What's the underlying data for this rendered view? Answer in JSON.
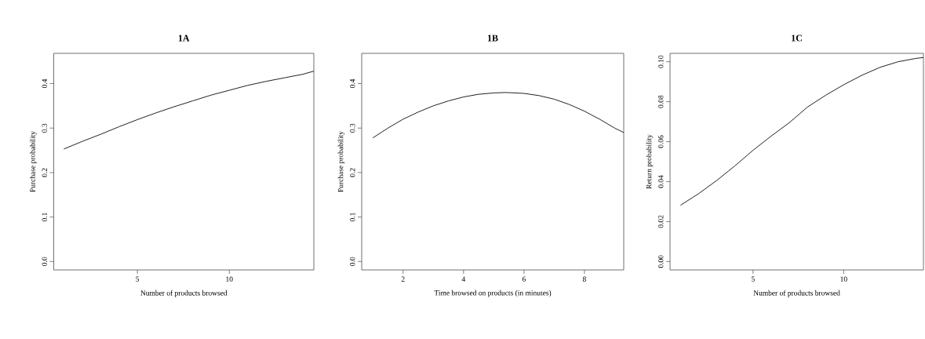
{
  "chart_data": [
    {
      "type": "line",
      "title": "1A",
      "xlabel": "Number of products browsed",
      "ylabel": "Purchase probability",
      "color": "#222222",
      "grid": false,
      "marker": "none",
      "line_style": "solid",
      "x": [
        1,
        2,
        3,
        4,
        5,
        6,
        7,
        8,
        9,
        10,
        11,
        12,
        13,
        14,
        14.6
      ],
      "values": [
        0.253,
        0.27,
        0.286,
        0.303,
        0.319,
        0.334,
        0.348,
        0.361,
        0.374,
        0.385,
        0.396,
        0.405,
        0.413,
        0.421,
        0.428
      ],
      "xlim": [
        0.45,
        14.6
      ],
      "ylim": [
        -0.019,
        0.468
      ],
      "xticks": [
        5,
        10
      ],
      "yticks": [
        {
          "value": 0,
          "label": "0.0"
        },
        0.1,
        0.2,
        0.3,
        0.4
      ]
    },
    {
      "type": "line",
      "title": "1B",
      "xlabel": "Time browsed on products (in minutes)",
      "ylabel": "Purchase probability",
      "color": "#222222",
      "grid": false,
      "marker": "none",
      "line_style": "solid",
      "x": [
        1,
        1.5,
        2,
        2.5,
        3,
        3.5,
        4,
        4.5,
        5,
        5.4,
        6,
        6.5,
        7,
        7.5,
        8,
        8.5,
        9,
        9.3
      ],
      "values": [
        0.278,
        0.3,
        0.32,
        0.336,
        0.35,
        0.361,
        0.37,
        0.376,
        0.379,
        0.38,
        0.378,
        0.373,
        0.365,
        0.353,
        0.338,
        0.32,
        0.3,
        0.29
      ],
      "xlim": [
        0.63,
        9.3
      ],
      "ylim": [
        -0.019,
        0.468
      ],
      "xticks": [
        2,
        4,
        6,
        8
      ],
      "yticks": [
        {
          "value": 0,
          "label": "0.0"
        },
        0.1,
        0.2,
        0.3,
        0.4
      ]
    },
    {
      "type": "line",
      "title": "1C",
      "xlabel": "Number of products browsed",
      "ylabel": "Return probability",
      "color": "#222222",
      "grid": false,
      "marker": "none",
      "line_style": "solid",
      "x": [
        1,
        2,
        3,
        4,
        5,
        6,
        7,
        8,
        9,
        10,
        11,
        12,
        13,
        14,
        14.4
      ],
      "values": [
        0.0282,
        0.034,
        0.0406,
        0.0479,
        0.0557,
        0.0628,
        0.0695,
        0.0773,
        0.0832,
        0.0885,
        0.0932,
        0.0972,
        0.1,
        0.1017,
        0.1021
      ],
      "xlim": [
        0.42,
        14.4
      ],
      "ylim": [
        -0.0042,
        0.1042
      ],
      "xticks": [
        5,
        10
      ],
      "yticks": [
        {
          "value": 0,
          "label": "0.00"
        },
        {
          "value": 0.02,
          "label": "0.02"
        },
        {
          "value": 0.04,
          "label": "0.04"
        },
        {
          "value": 0.06,
          "label": "0.06"
        },
        {
          "value": 0.08,
          "label": "0.08"
        },
        {
          "value": 0.1,
          "label": "0.10"
        }
      ]
    }
  ]
}
